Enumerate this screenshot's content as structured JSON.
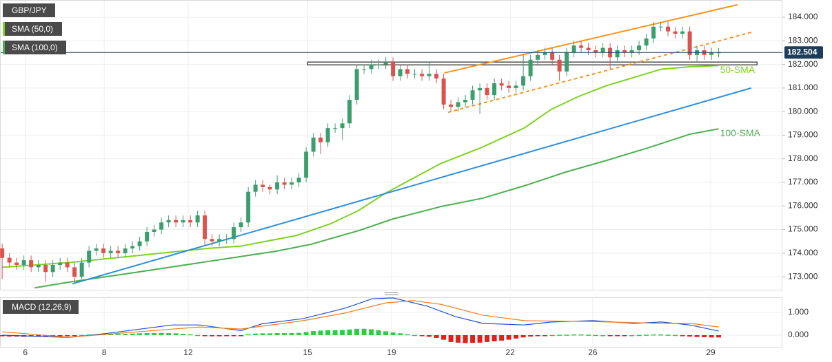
{
  "chart_data": {
    "type": "candlestick",
    "title": "GBP/JPY",
    "up_color": "#3c9e6e",
    "down_color": "#d9534f",
    "grid": true,
    "xlim": [
      -0.3,
      107.8
    ],
    "xticks": [
      {
        "value": 3.2,
        "label": "6"
      },
      {
        "value": 14.1,
        "label": "8"
      },
      {
        "value": 25.7,
        "label": "12"
      },
      {
        "value": 42.2,
        "label": "15"
      },
      {
        "value": 53.8,
        "label": "19"
      },
      {
        "value": 70.2,
        "label": "22"
      },
      {
        "value": 81.6,
        "label": "26"
      },
      {
        "value": 97.9,
        "label": "29"
      }
    ],
    "ylim": [
      172.42,
      184.73
    ],
    "yticks": [
      {
        "value": 173,
        "label": "173.000"
      },
      {
        "value": 174,
        "label": "174.000"
      },
      {
        "value": 175,
        "label": "175.000"
      },
      {
        "value": 176,
        "label": "176.000"
      },
      {
        "value": 177,
        "label": "177.000"
      },
      {
        "value": 178,
        "label": "178.000"
      },
      {
        "value": 179,
        "label": "179.000"
      },
      {
        "value": 180,
        "label": "180.000"
      },
      {
        "value": 181,
        "label": "181.000"
      },
      {
        "value": 182,
        "label": "182.000"
      },
      {
        "value": 183,
        "label": "183.000"
      },
      {
        "value": 184,
        "label": "184.000"
      }
    ],
    "last_price": 182.504,
    "last_price_color": "#1e3d5a",
    "x": [
      0,
      1,
      2,
      3,
      4,
      5,
      6,
      7,
      8,
      9,
      10,
      11,
      12,
      13,
      14,
      15,
      16,
      17,
      18,
      19,
      20,
      21,
      22,
      23,
      24,
      25,
      26,
      27,
      28,
      29,
      30,
      31,
      32,
      33,
      34,
      35,
      36,
      37,
      38,
      39,
      40,
      41,
      42,
      43,
      44,
      45,
      46,
      47,
      48,
      49,
      50,
      51,
      52,
      53,
      54,
      55,
      56,
      57,
      58,
      59,
      60,
      61,
      62,
      63,
      64,
      65,
      66,
      67,
      68,
      69,
      70,
      71,
      72,
      73,
      74,
      75,
      76,
      77,
      78,
      79,
      80,
      81,
      82,
      83,
      84,
      85,
      86,
      87,
      88,
      89,
      90,
      91,
      92,
      93,
      94,
      95,
      96,
      97,
      98,
      99
    ],
    "open": [
      174.2,
      173.8,
      173.6,
      173.5,
      173.7,
      173.4,
      173.5,
      173.2,
      173.5,
      173.6,
      173.4,
      173.0,
      173.6,
      174.1,
      174.2,
      174.0,
      174.1,
      174.0,
      174.2,
      174.3,
      174.5,
      174.9,
      175.0,
      175.3,
      175.4,
      175.3,
      175.4,
      175.3,
      175.6,
      174.6,
      174.5,
      174.6,
      174.6,
      175.1,
      175.3,
      176.6,
      176.9,
      176.8,
      176.7,
      177.0,
      176.9,
      177.0,
      177.2,
      178.3,
      178.9,
      178.7,
      179.3,
      179.3,
      179.5,
      180.5,
      181.8,
      181.8,
      182.0,
      182.0,
      182.1,
      181.5,
      181.8,
      181.6,
      181.6,
      181.5,
      181.6,
      181.4,
      180.3,
      180.2,
      180.4,
      180.5,
      180.9,
      181.0,
      180.7,
      181.2,
      181.1,
      181.0,
      181.1,
      181.5,
      182.2,
      182.4,
      182.5,
      182.2,
      181.7,
      182.5,
      182.8,
      182.7,
      182.6,
      182.5,
      182.7,
      182.3,
      182.6,
      182.5,
      182.6,
      182.8,
      183.1,
      183.6,
      183.6,
      183.4,
      183.3,
      183.4,
      182.4,
      182.6,
      182.4,
      182.5
    ],
    "high": [
      174.4,
      174.0,
      173.8,
      173.9,
      173.9,
      173.7,
      173.7,
      173.7,
      173.8,
      173.8,
      173.6,
      173.8,
      174.3,
      174.4,
      174.4,
      174.3,
      174.3,
      174.4,
      174.5,
      174.7,
      175.1,
      175.2,
      175.5,
      175.6,
      175.6,
      175.6,
      175.6,
      175.8,
      175.8,
      174.8,
      174.8,
      174.8,
      175.3,
      175.5,
      176.8,
      177.1,
      177.1,
      176.9,
      177.3,
      177.2,
      177.2,
      177.4,
      178.5,
      179.1,
      179.1,
      179.5,
      179.5,
      179.7,
      180.7,
      182.0,
      182.0,
      182.2,
      182.2,
      182.3,
      182.3,
      182.0,
      182.0,
      181.8,
      181.8,
      182.1,
      181.8,
      181.6,
      180.5,
      180.6,
      180.7,
      181.1,
      181.2,
      181.2,
      181.4,
      181.4,
      181.3,
      181.3,
      182.4,
      182.4,
      182.6,
      182.7,
      182.7,
      182.4,
      182.7,
      183.0,
      183.0,
      182.9,
      182.8,
      182.9,
      182.9,
      182.8,
      182.8,
      182.8,
      183.0,
      183.3,
      183.8,
      183.8,
      183.8,
      183.6,
      183.6,
      183.6,
      182.8,
      182.8,
      182.7,
      182.7
    ],
    "low": [
      172.9,
      173.4,
      173.3,
      173.3,
      173.2,
      173.2,
      172.8,
      173.0,
      173.3,
      173.2,
      172.7,
      172.9,
      173.4,
      173.9,
      173.8,
      173.8,
      173.8,
      173.8,
      174.0,
      174.1,
      174.3,
      174.7,
      174.8,
      175.1,
      175.1,
      175.1,
      175.1,
      175.1,
      174.3,
      174.3,
      174.3,
      174.4,
      174.4,
      174.9,
      175.1,
      176.4,
      176.6,
      176.5,
      176.5,
      176.7,
      176.7,
      176.8,
      177.0,
      178.1,
      178.2,
      178.5,
      179.1,
      178.8,
      179.3,
      180.3,
      181.6,
      181.6,
      181.8,
      181.8,
      181.3,
      181.3,
      181.4,
      181.4,
      181.3,
      181.3,
      181.2,
      180.1,
      180.0,
      180.0,
      180.2,
      180.3,
      179.9,
      180.5,
      180.5,
      180.9,
      180.8,
      180.8,
      180.9,
      181.3,
      182.0,
      182.2,
      182.0,
      181.3,
      181.5,
      182.3,
      182.5,
      182.4,
      182.3,
      182.3,
      181.8,
      182.1,
      182.3,
      182.3,
      182.4,
      182.6,
      182.9,
      183.4,
      183.2,
      183.1,
      183.1,
      182.2,
      182.1,
      182.2,
      182.2,
      182.3
    ],
    "close": [
      173.8,
      173.6,
      173.5,
      173.7,
      173.4,
      173.5,
      173.2,
      173.5,
      173.6,
      173.4,
      173.0,
      173.6,
      174.1,
      174.2,
      174.0,
      174.1,
      174.0,
      174.2,
      174.3,
      174.5,
      174.9,
      175.0,
      175.3,
      175.4,
      175.3,
      175.4,
      175.3,
      175.6,
      174.6,
      174.5,
      174.6,
      174.6,
      175.1,
      175.3,
      176.6,
      176.9,
      176.8,
      176.7,
      177.0,
      176.9,
      177.0,
      177.2,
      178.3,
      178.9,
      178.7,
      179.3,
      179.3,
      179.5,
      180.5,
      181.8,
      181.8,
      182.0,
      182.0,
      182.1,
      181.5,
      181.8,
      181.6,
      181.6,
      181.5,
      181.6,
      181.4,
      180.3,
      180.2,
      180.4,
      180.5,
      180.9,
      181.0,
      180.7,
      181.2,
      181.1,
      181.0,
      181.1,
      181.5,
      182.2,
      182.4,
      182.5,
      182.2,
      181.7,
      182.5,
      182.8,
      182.7,
      182.6,
      182.5,
      182.7,
      182.3,
      182.6,
      182.5,
      182.6,
      182.8,
      183.1,
      183.6,
      183.6,
      183.4,
      183.3,
      183.4,
      182.4,
      182.6,
      182.4,
      182.5,
      182.504
    ],
    "series": [
      {
        "name": "SMA (50,0)",
        "label": "50-SMA",
        "color": "#7ed321",
        "x": [
          0,
          9.2,
          18.8,
          28.3,
          33,
          40.7,
          45.4,
          49.2,
          53,
          60.6,
          66.4,
          72.1,
          75.9,
          79.7,
          83.5,
          87.3,
          91.1,
          95,
          99
        ],
        "values": [
          173.4,
          173.6,
          173.9,
          174.2,
          174.3,
          174.75,
          175.25,
          175.8,
          176.55,
          177.8,
          178.5,
          179.3,
          180.1,
          180.65,
          181.1,
          181.45,
          181.8,
          181.9,
          181.95
        ]
      },
      {
        "name": "SMA (100,0)",
        "label": "100-SMA",
        "color": "#4caf50",
        "x": [
          4.5,
          9.2,
          18.8,
          28.3,
          37.8,
          42.6,
          49.2,
          54,
          60.7,
          66.4,
          72.1,
          77.8,
          83.5,
          89.2,
          95,
          99
        ],
        "values": [
          172.53,
          172.77,
          173.2,
          173.64,
          174.08,
          174.37,
          174.95,
          175.45,
          175.98,
          176.33,
          176.85,
          177.43,
          177.93,
          178.46,
          179.04,
          179.27
        ]
      }
    ],
    "trendlines": [
      {
        "color": "#2f8fdd",
        "dashed": false,
        "x": [
          9.7,
          103.5
        ],
        "y": [
          172.7,
          181.0
        ]
      },
      {
        "color": "#f7931e",
        "dashed": false,
        "x": [
          61.1,
          101.6
        ],
        "y": [
          181.64,
          184.53
        ]
      },
      {
        "color": "#f7931e",
        "dashed": true,
        "x": [
          61.6,
          103.5
        ],
        "y": [
          179.97,
          183.36
        ]
      }
    ],
    "zone": {
      "x": [
        42.2,
        104.3
      ],
      "y": [
        181.98,
        182.1
      ]
    },
    "macd": {
      "title": "MACD (12,26,9)",
      "ylim": [
        -0.545,
        1.667
      ],
      "yticks": [
        {
          "value": 0,
          "label": "0.000"
        },
        {
          "value": 1,
          "label": "1.000"
        }
      ],
      "pos_color": "#2ecc40",
      "neg_color": "#e0201b",
      "histogram": [
        -0.05,
        -0.06,
        -0.06,
        -0.07,
        -0.06,
        -0.05,
        -0.06,
        -0.05,
        -0.04,
        -0.03,
        -0.02,
        0.01,
        0.03,
        0.04,
        0.05,
        0.05,
        0.05,
        0.06,
        0.07,
        0.08,
        0.09,
        0.09,
        0.1,
        0.09,
        0.08,
        0.06,
        0.04,
        0.01,
        -0.03,
        -0.05,
        -0.05,
        -0.04,
        -0.03,
        -0.01,
        0.04,
        0.07,
        0.08,
        0.08,
        0.09,
        0.09,
        0.09,
        0.1,
        0.14,
        0.18,
        0.2,
        0.22,
        0.22,
        0.23,
        0.25,
        0.28,
        0.28,
        0.26,
        0.22,
        0.17,
        0.12,
        0.08,
        0.04,
        0.01,
        -0.02,
        -0.07,
        -0.12,
        -0.2,
        -0.3,
        -0.33,
        -0.35,
        -0.34,
        -0.33,
        -0.3,
        -0.27,
        -0.24,
        -0.2,
        -0.15,
        -0.1,
        -0.06,
        -0.03,
        -0.01,
        0.01,
        0.02,
        0.02,
        0.03,
        0.03,
        0.02,
        0.01,
        0.0,
        -0.01,
        -0.02,
        -0.02,
        0.0,
        0.01,
        0.02,
        0.03,
        0.03,
        0.02,
        0.01,
        -0.03,
        -0.06,
        -0.08,
        -0.09,
        -0.1,
        -0.1
      ],
      "lines": [
        {
          "color": "#1f4fcf",
          "x": [
            0,
            9.2,
            14,
            23.5,
            27.3,
            33,
            35.9,
            41.6,
            47.3,
            51.1,
            54,
            58.8,
            62.6,
            66.4,
            72.1,
            75.9,
            81.6,
            87.3,
            91.1,
            95,
            99
          ],
          "values": [
            0,
            -0.1,
            0.06,
            0.45,
            0.45,
            0.2,
            0.5,
            0.73,
            1.18,
            1.6,
            1.64,
            1.27,
            0.82,
            0.52,
            0.45,
            0.58,
            0.64,
            0.52,
            0.58,
            0.45,
            0.18
          ]
        },
        {
          "color": "#f47c20",
          "x": [
            0,
            9.2,
            18.8,
            27.3,
            33,
            41.6,
            47.3,
            53,
            56.8,
            60.6,
            66.4,
            72.1,
            81.6,
            91.1,
            95,
            99
          ],
          "values": [
            0.15,
            -0.09,
            0.15,
            0.36,
            0.27,
            0.64,
            0.97,
            1.42,
            1.52,
            1.36,
            0.88,
            0.64,
            0.6,
            0.52,
            0.52,
            0.36
          ]
        }
      ]
    }
  }
}
